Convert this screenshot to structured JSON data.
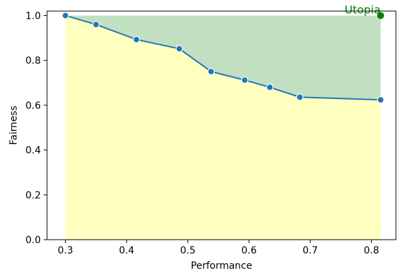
{
  "chart_data": {
    "type": "line",
    "title": "",
    "xlabel": "Performance",
    "ylabel": "Fairness",
    "xlim": [
      0.27,
      0.84
    ],
    "ylim": [
      0.0,
      1.02
    ],
    "x_ticks": [
      0.3,
      0.4,
      0.5,
      0.6,
      0.7,
      0.8
    ],
    "x_tick_labels": [
      "0.3",
      "0.4",
      "0.5",
      "0.6",
      "0.7",
      "0.8"
    ],
    "y_ticks": [
      0.0,
      0.2,
      0.4,
      0.6,
      0.8,
      1.0
    ],
    "y_tick_labels": [
      "0.0",
      "0.2",
      "0.4",
      "0.6",
      "0.8",
      "1.0"
    ],
    "grid": false,
    "series": [
      {
        "x": [
          0.3,
          0.35,
          0.416,
          0.486,
          0.538,
          0.593,
          0.634,
          0.683,
          0.815
        ],
        "y": [
          1.0,
          0.96,
          0.893,
          0.852,
          0.75,
          0.712,
          0.68,
          0.636,
          0.624
        ],
        "color": "#1f77b4"
      }
    ],
    "fill_below_color": "#ffffc0",
    "fill_above_color": "#c1dfc1",
    "fill_top": 1.0,
    "annotation": {
      "text": "Utopia",
      "x": 0.815,
      "y": 1.0,
      "color": "#008000"
    }
  }
}
